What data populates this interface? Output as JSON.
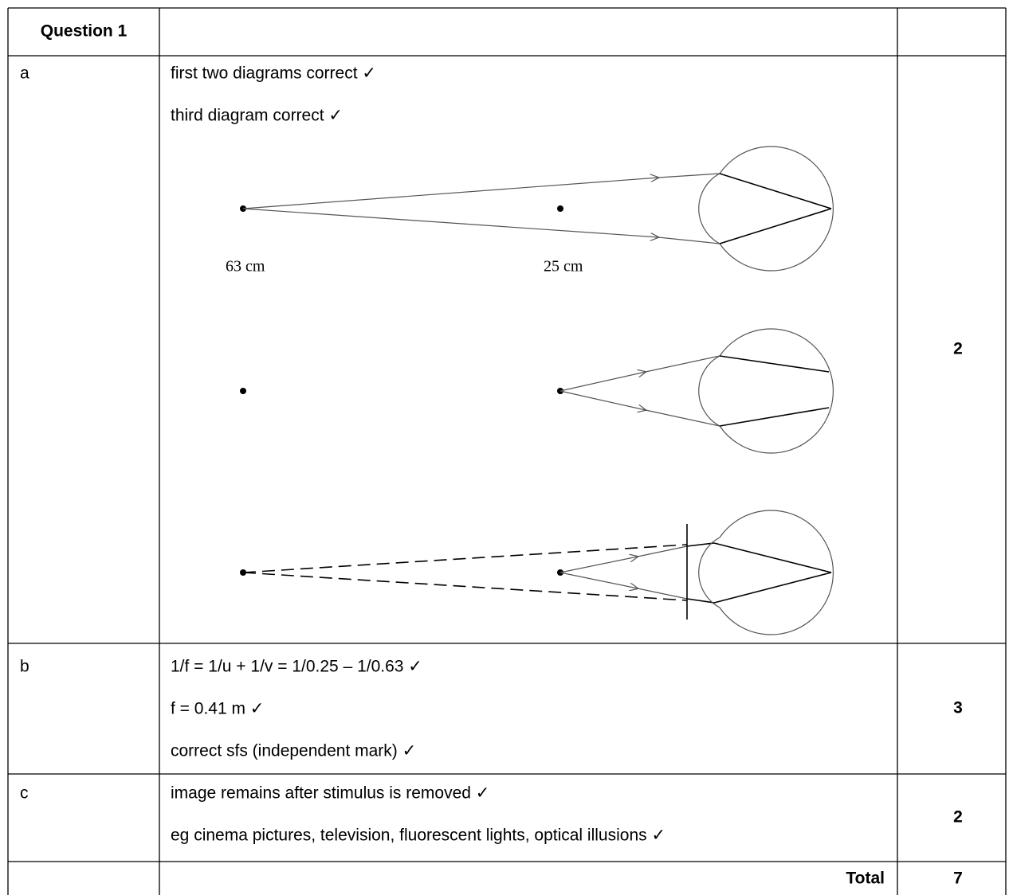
{
  "header": {
    "question": "Question 1"
  },
  "rows": [
    {
      "part": "a",
      "lines": [
        "first two diagrams correct ✓",
        "third diagram correct ✓"
      ],
      "marks": 2
    },
    {
      "part": "b",
      "lines": [
        "1/f = 1/u + 1/v = 1/0.25 – 1/0.63 ✓",
        "f = 0.41 m ✓",
        "correct sfs (independent mark) ✓"
      ],
      "marks": 3
    },
    {
      "part": "c",
      "lines": [
        "image remains after stimulus is removed ✓",
        "eg cinema pictures, television, fluorescent lights, optical illusions ✓"
      ],
      "marks": 2
    }
  ],
  "diagram": {
    "labels": [
      "63 cm",
      "25 cm"
    ]
  },
  "total": {
    "label": "Total",
    "marks": 7
  }
}
